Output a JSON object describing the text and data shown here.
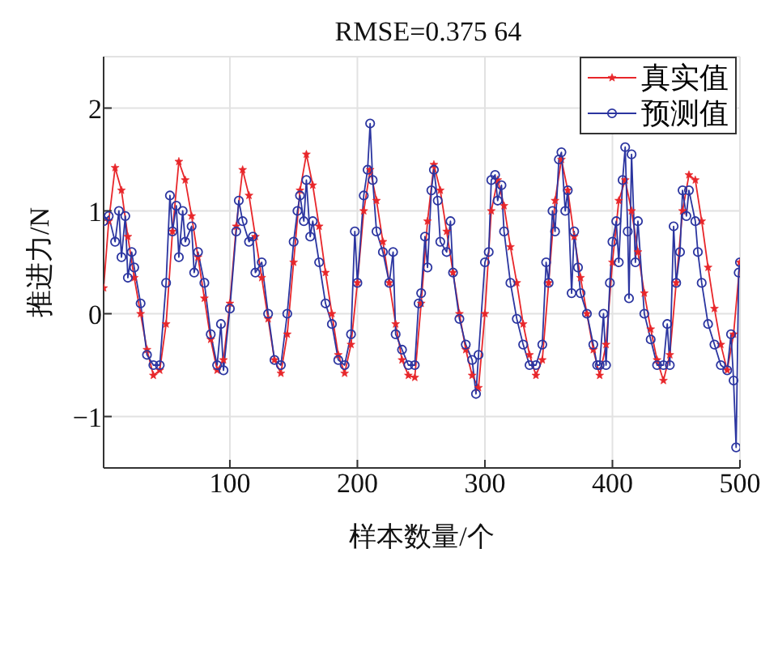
{
  "chart_data": {
    "type": "line",
    "title": "RMSE=0.375 64",
    "xlabel": "样本数量/个",
    "ylabel": "推进力/N",
    "xlim": [
      1,
      500
    ],
    "xticks": [
      100,
      200,
      300,
      400,
      500
    ],
    "ylim": [
      -1.5,
      2.5
    ],
    "yticks": [
      -1,
      0,
      1,
      2
    ],
    "grid": true,
    "legend": "top right",
    "line_style": "solid",
    "series": [
      {
        "name": "真实值",
        "color": "#e8262a",
        "marker": "star",
        "x": [
          1,
          5,
          10,
          15,
          20,
          25,
          30,
          35,
          40,
          45,
          50,
          55,
          60,
          65,
          70,
          75,
          80,
          85,
          90,
          95,
          100,
          105,
          110,
          115,
          120,
          125,
          130,
          135,
          140,
          145,
          150,
          155,
          160,
          165,
          170,
          175,
          180,
          185,
          190,
          195,
          200,
          205,
          210,
          215,
          220,
          225,
          230,
          235,
          240,
          245,
          250,
          255,
          260,
          265,
          270,
          275,
          280,
          285,
          290,
          295,
          300,
          305,
          310,
          315,
          320,
          325,
          330,
          335,
          340,
          345,
          350,
          355,
          360,
          365,
          370,
          375,
          380,
          385,
          390,
          395,
          400,
          405,
          410,
          415,
          420,
          425,
          430,
          435,
          440,
          445,
          450,
          455,
          460,
          465,
          470,
          475,
          480,
          485,
          490,
          495,
          500
        ],
        "values": [
          0.25,
          0.9,
          1.42,
          1.2,
          0.75,
          0.35,
          0.0,
          -0.35,
          -0.6,
          -0.55,
          -0.1,
          0.8,
          1.48,
          1.3,
          0.95,
          0.55,
          0.15,
          -0.25,
          -0.55,
          -0.45,
          0.1,
          0.85,
          1.4,
          1.15,
          0.75,
          0.35,
          -0.05,
          -0.45,
          -0.58,
          -0.2,
          0.5,
          1.2,
          1.55,
          1.25,
          0.85,
          0.4,
          0.0,
          -0.4,
          -0.58,
          -0.3,
          0.3,
          1.0,
          1.4,
          1.1,
          0.7,
          0.3,
          -0.1,
          -0.45,
          -0.6,
          -0.62,
          0.1,
          0.9,
          1.45,
          1.2,
          0.8,
          0.4,
          0.0,
          -0.35,
          -0.6,
          -0.72,
          0.0,
          1.0,
          1.3,
          1.05,
          0.65,
          0.3,
          -0.1,
          -0.4,
          -0.6,
          -0.45,
          0.3,
          1.1,
          1.5,
          1.2,
          0.75,
          0.35,
          0.0,
          -0.35,
          -0.6,
          -0.3,
          0.5,
          1.1,
          1.3,
          1.0,
          0.6,
          0.2,
          -0.15,
          -0.45,
          -0.65,
          -0.4,
          0.3,
          1.0,
          1.35,
          1.3,
          0.9,
          0.45,
          0.05,
          -0.3,
          -0.55,
          -0.2,
          0.5
        ]
      },
      {
        "name": "预测值",
        "color": "#2b35a0",
        "marker": "circle",
        "x": [
          1,
          5,
          10,
          13,
          15,
          18,
          20,
          23,
          25,
          30,
          35,
          40,
          45,
          50,
          53,
          55,
          58,
          60,
          63,
          65,
          70,
          72,
          75,
          80,
          85,
          90,
          93,
          95,
          100,
          105,
          107,
          110,
          115,
          118,
          120,
          125,
          130,
          135,
          140,
          145,
          150,
          153,
          155,
          158,
          160,
          163,
          165,
          170,
          175,
          180,
          185,
          190,
          195,
          198,
          200,
          205,
          208,
          210,
          212,
          215,
          220,
          225,
          228,
          230,
          235,
          240,
          245,
          248,
          250,
          253,
          255,
          258,
          260,
          263,
          265,
          270,
          273,
          275,
          280,
          285,
          290,
          293,
          295,
          300,
          303,
          305,
          308,
          310,
          313,
          315,
          320,
          325,
          330,
          335,
          340,
          345,
          348,
          350,
          353,
          355,
          358,
          360,
          363,
          365,
          368,
          370,
          373,
          375,
          380,
          385,
          388,
          390,
          393,
          395,
          398,
          400,
          403,
          405,
          408,
          410,
          412,
          413,
          415,
          418,
          420,
          425,
          430,
          435,
          440,
          443,
          445,
          448,
          450,
          453,
          455,
          458,
          460,
          465,
          467,
          470,
          475,
          480,
          485,
          490,
          493,
          495,
          497,
          499,
          500
        ],
        "values": [
          0.9,
          0.95,
          0.7,
          1.0,
          0.55,
          0.95,
          0.35,
          0.6,
          0.45,
          0.1,
          -0.4,
          -0.5,
          -0.5,
          0.3,
          1.15,
          0.8,
          1.05,
          0.55,
          1.0,
          0.7,
          0.85,
          0.4,
          0.6,
          0.3,
          -0.2,
          -0.5,
          -0.1,
          -0.55,
          0.05,
          0.8,
          1.1,
          0.9,
          0.7,
          0.75,
          0.4,
          0.5,
          0.0,
          -0.45,
          -0.5,
          0.0,
          0.7,
          1.0,
          1.15,
          0.9,
          1.3,
          0.75,
          0.9,
          0.5,
          0.1,
          -0.1,
          -0.45,
          -0.5,
          -0.2,
          0.8,
          0.3,
          1.15,
          1.4,
          1.85,
          1.3,
          0.8,
          0.6,
          0.3,
          0.6,
          -0.2,
          -0.35,
          -0.5,
          -0.5,
          0.1,
          0.2,
          0.75,
          0.45,
          1.2,
          1.4,
          1.1,
          0.7,
          0.6,
          0.9,
          0.4,
          -0.05,
          -0.3,
          -0.45,
          -0.78,
          -0.4,
          0.5,
          0.6,
          1.3,
          1.35,
          1.1,
          1.25,
          0.8,
          0.3,
          -0.05,
          -0.3,
          -0.5,
          -0.5,
          -0.3,
          0.5,
          0.3,
          1.0,
          0.8,
          1.5,
          1.57,
          1.0,
          1.2,
          0.2,
          0.8,
          0.45,
          0.2,
          0.0,
          -0.3,
          -0.5,
          -0.5,
          0.0,
          -0.5,
          0.3,
          0.7,
          0.9,
          0.5,
          1.3,
          1.62,
          0.8,
          0.15,
          1.55,
          0.5,
          0.9,
          0.0,
          -0.25,
          -0.5,
          -0.5,
          -0.1,
          -0.5,
          0.85,
          0.3,
          0.6,
          1.2,
          0.95,
          1.2,
          0.9,
          0.6,
          0.3,
          -0.1,
          -0.3,
          -0.5,
          -0.55,
          -0.2,
          -0.65,
          -1.3,
          0.4,
          0.5
        ]
      }
    ]
  }
}
